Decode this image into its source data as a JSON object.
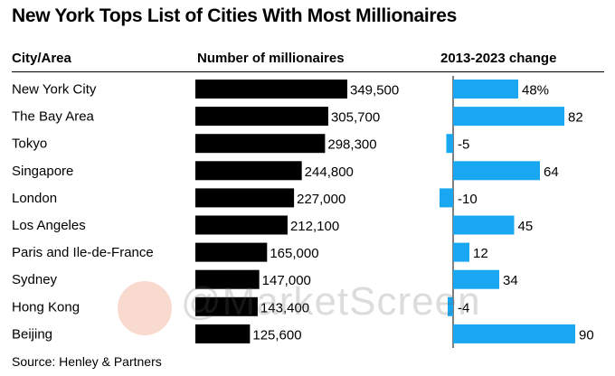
{
  "title": "New York Tops List of Cities With Most Millionaires",
  "headers": {
    "city": "City/Area",
    "millionaires": "Number of millionaires",
    "change": "2013-2023 change"
  },
  "source": "Source: Henley & Partners",
  "watermark": "@MarketScreen",
  "colors": {
    "bar_primary": "#000000",
    "bar_change": "#1aa7f2"
  },
  "chart_data": {
    "type": "bar",
    "title": "New York Tops List of Cities With Most Millionaires",
    "categories": [
      "New York City",
      "The Bay Area",
      "Tokyo",
      "Singapore",
      "London",
      "Los Angeles",
      "Paris and Ile-de-France",
      "Sydney",
      "Hong Kong",
      "Beijing"
    ],
    "series": [
      {
        "name": "Number of millionaires",
        "values": [
          349500,
          305700,
          298300,
          244800,
          227000,
          212100,
          165000,
          147000,
          143400,
          125600
        ],
        "labels": [
          "349,500",
          "305,700",
          "298,300",
          "244,800",
          "227,000",
          "212,100",
          "165,000",
          "147,000",
          "143,400",
          "125,600"
        ]
      },
      {
        "name": "2013-2023 change",
        "values": [
          48,
          82,
          -5,
          64,
          -10,
          45,
          12,
          34,
          -4,
          90
        ],
        "labels": [
          "48%",
          "82",
          "-5",
          "64",
          "-10",
          "45",
          "12",
          "34",
          "-4",
          "90"
        ]
      }
    ]
  }
}
